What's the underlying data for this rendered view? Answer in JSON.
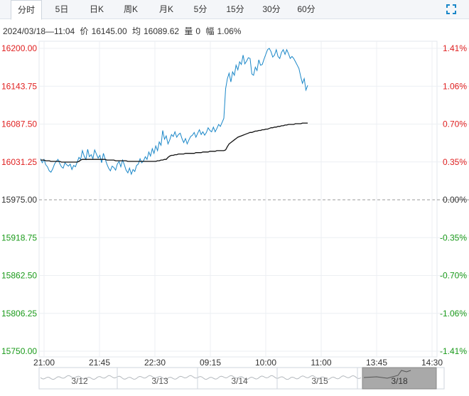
{
  "tabs": [
    {
      "label": "分时",
      "active": true
    },
    {
      "label": "5日",
      "active": false
    },
    {
      "label": "日K",
      "active": false
    },
    {
      "label": "周K",
      "active": false
    },
    {
      "label": "月K",
      "active": false
    },
    {
      "label": "5分",
      "active": false
    },
    {
      "label": "15分",
      "active": false
    },
    {
      "label": "30分",
      "active": false
    },
    {
      "label": "60分",
      "active": false
    }
  ],
  "info": {
    "datetime": "2024/03/18—11:04",
    "price_label": "价",
    "price": "16145.00",
    "avg_label": "均",
    "avg": "16089.62",
    "volume_label": "量",
    "volume": "0",
    "change_label": "幅",
    "change": "1.06%"
  },
  "chart_data": {
    "type": "line",
    "reference_price": 15975.0,
    "ylim": [
      15750.0,
      16200.0
    ],
    "y_ticks": [
      "16200.00",
      "16143.75",
      "16087.50",
      "16031.25",
      "15975.00",
      "15918.75",
      "15862.50",
      "15806.25",
      "15750.00"
    ],
    "pct_ticks": [
      "1.41%",
      "1.06%",
      "0.70%",
      "0.35%",
      "0.00%",
      "-0.35%",
      "-0.70%",
      "-1.06%",
      "-1.41%"
    ],
    "x_ticks": [
      "21:00",
      "21:45",
      "22:30",
      "09:15",
      "10:00",
      "11:00",
      "13:45",
      "14:30"
    ],
    "colors": {
      "up": "#e02020",
      "down": "#1a9a1a",
      "neutral": "#333333",
      "price": "#1a87c8",
      "avg": "#111111"
    },
    "series": [
      {
        "values": [
          16036,
          16030,
          16035,
          16027,
          16024,
          16018,
          16016,
          16021,
          16028,
          16032,
          16035,
          16029,
          16024,
          16022,
          16030,
          16027,
          16025,
          16028,
          16020,
          16026,
          16024,
          16031,
          16038,
          16035,
          16048,
          16040,
          16035,
          16050,
          16039,
          16042,
          16036,
          16049,
          16043,
          16037,
          16041,
          16030,
          16044,
          16036,
          16028,
          16022,
          16018,
          16025,
          16023,
          16019,
          16028,
          16032,
          16024,
          16034,
          16027,
          16019,
          16015,
          16022,
          16013,
          16020,
          16017,
          16026,
          16028,
          16036,
          16030,
          16033,
          16039,
          16035,
          16046,
          16040,
          16051,
          16044,
          16055,
          16048,
          16061,
          16056,
          16078,
          16065,
          16070,
          16058,
          16064,
          16072,
          16069,
          16076,
          16068,
          16072,
          16074,
          16066,
          16060,
          16066,
          16058,
          16064,
          16069,
          16071,
          16075,
          16068,
          16074,
          16079,
          16072,
          16076,
          16071,
          16075,
          16082,
          16078,
          16076,
          16083,
          16076,
          16081,
          16087,
          16084,
          16090,
          16096,
          16140,
          16155,
          16163,
          16150,
          16165,
          16160,
          16175,
          16168,
          16180,
          16176,
          16190,
          16177,
          16181,
          16186,
          16185,
          16162,
          16160,
          16172,
          16167,
          16183,
          16175,
          16176,
          16184,
          16191,
          16198,
          16200,
          16195,
          16187,
          16190,
          16198,
          16188,
          16185,
          16194,
          16198,
          16191,
          16198,
          16192,
          16185,
          16188,
          16185,
          16180,
          16175,
          16170,
          16158,
          16148,
          16155,
          16138,
          16145
        ],
        "color": "#1a87c8"
      },
      {
        "values": [
          16034,
          16034,
          16034,
          16033,
          16033,
          16033,
          16032,
          16032,
          16032,
          16032,
          16032,
          16032,
          16031,
          16031,
          16031,
          16031,
          16031,
          16031,
          16031,
          16031,
          16031,
          16031,
          16032,
          16034,
          16035,
          16035,
          16035,
          16035,
          16035,
          16035,
          16035,
          16035,
          16035,
          16035,
          16035,
          16035,
          16035,
          16035,
          16034,
          16034,
          16034,
          16034,
          16034,
          16033,
          16033,
          16033,
          16033,
          16033,
          16033,
          16033,
          16032,
          16032,
          16032,
          16032,
          16032,
          16032,
          16032,
          16032,
          16032,
          16032,
          16032,
          16032,
          16032,
          16032,
          16032,
          16032,
          16032,
          16033,
          16033,
          16034,
          16034,
          16035,
          16035,
          16038,
          16040,
          16041,
          16041,
          16042,
          16042,
          16043,
          16043,
          16043,
          16043,
          16044,
          16044,
          16044,
          16044,
          16044,
          16044,
          16045,
          16045,
          16045,
          16045,
          16046,
          16046,
          16046,
          16046,
          16047,
          16047,
          16047,
          16047,
          16048,
          16048,
          16048,
          16048,
          16048,
          16049,
          16054,
          16058,
          16060,
          16062,
          16064,
          16066,
          16068,
          16069,
          16070,
          16071,
          16072,
          16073,
          16074,
          16075,
          16075,
          16076,
          16077,
          16077,
          16078,
          16078,
          16079,
          16079,
          16080,
          16080,
          16081,
          16082,
          16082,
          16083,
          16083,
          16084,
          16084,
          16085,
          16085,
          16086,
          16086,
          16087,
          16087,
          16087,
          16087,
          16088,
          16088,
          16088,
          16088,
          16089,
          16089,
          16089,
          16089
        ],
        "color": "#111111"
      }
    ]
  },
  "navigator": {
    "dates": [
      "3/12",
      "3/13",
      "3/14",
      "3/15",
      "3/18"
    ]
  }
}
